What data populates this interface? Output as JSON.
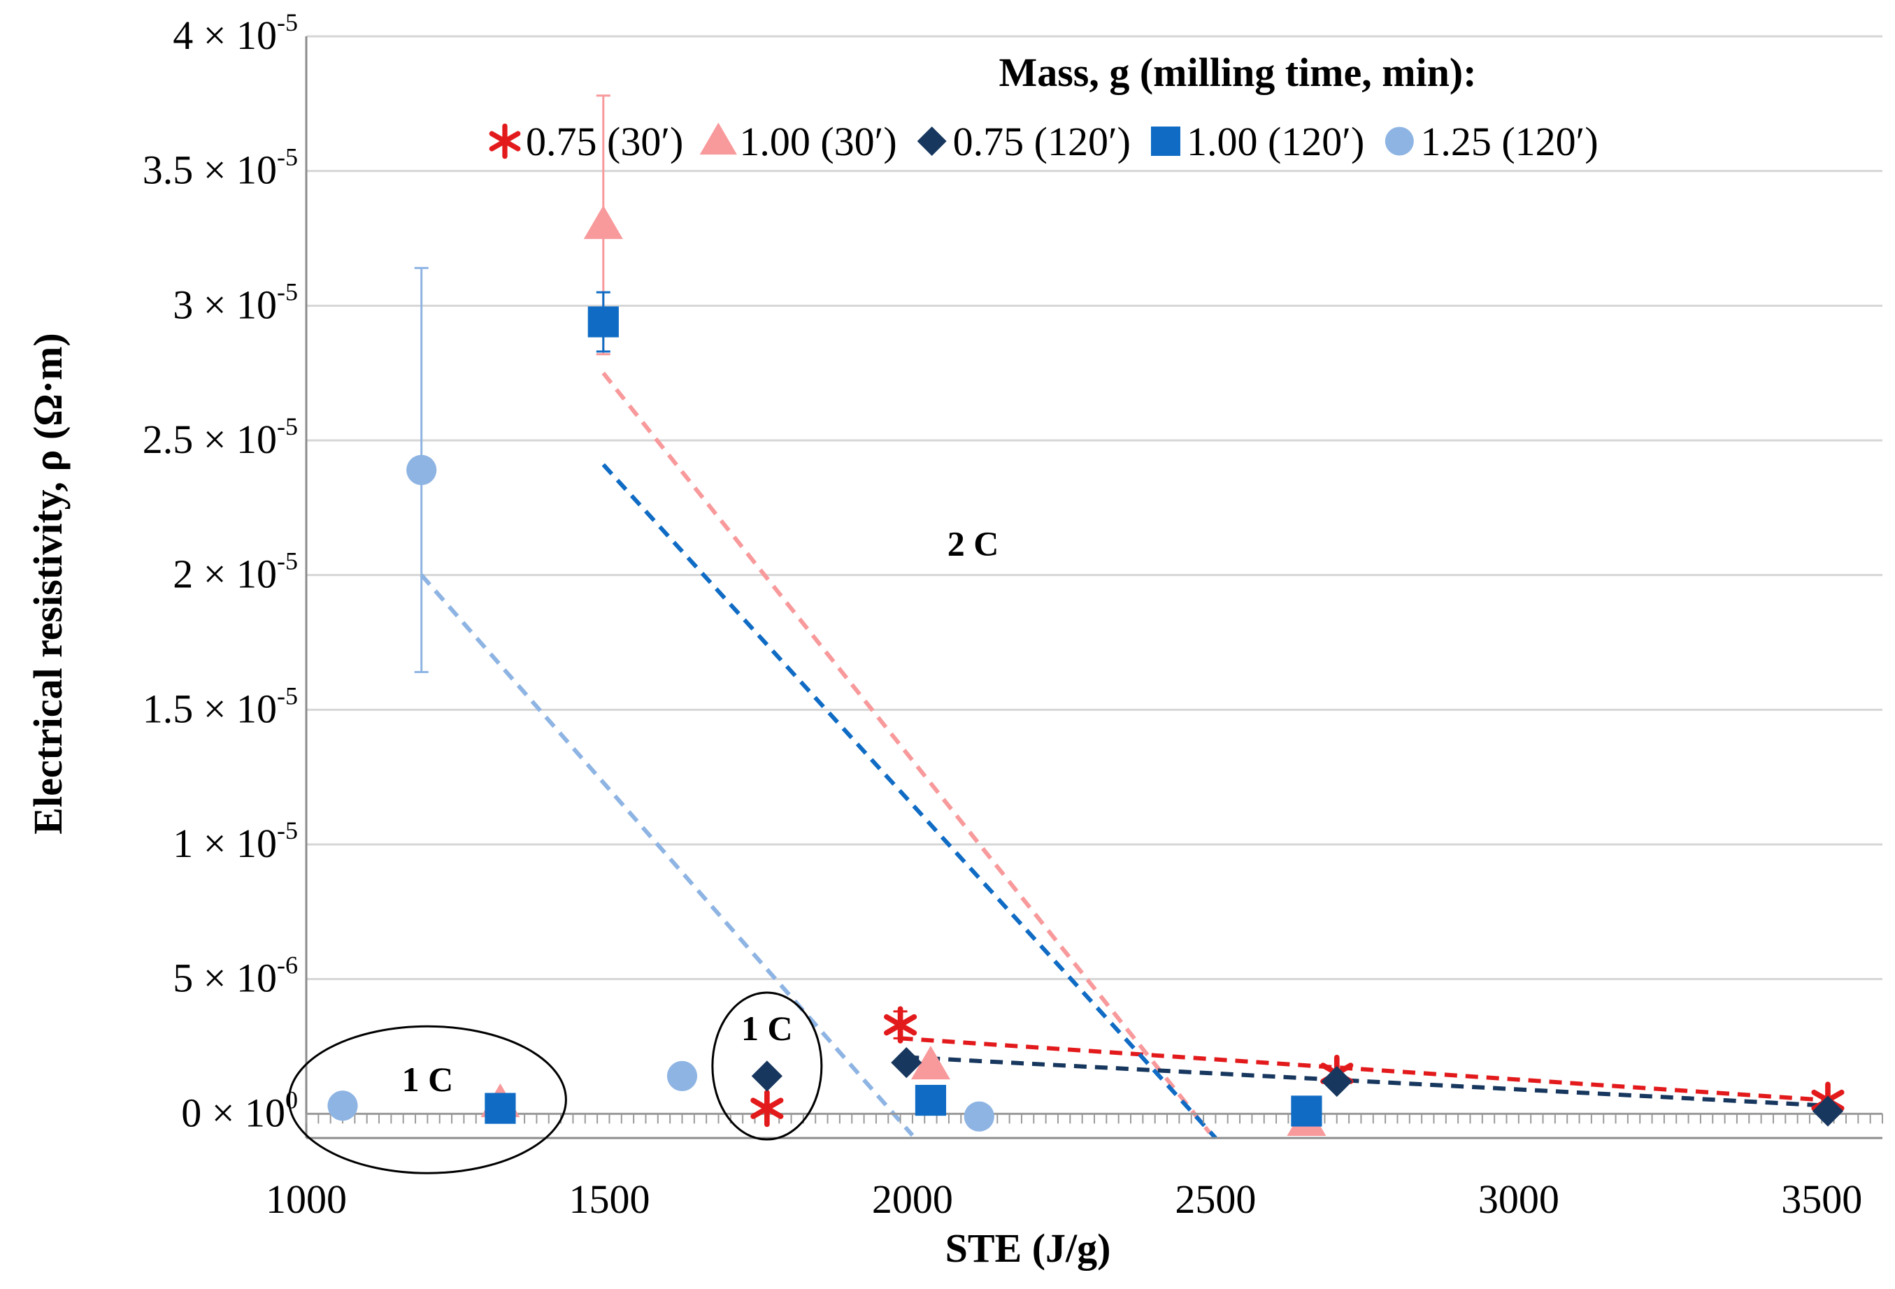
{
  "chart_data": {
    "type": "scatter",
    "title": "",
    "xlabel": "STE (J/g)",
    "ylabel": "Electrical resistivity, ρ (Ω·m)",
    "xlim": [
      1000,
      3600
    ],
    "ylim": [
      -9e-07,
      4e-05
    ],
    "grid": true,
    "x_ticks": [
      1000,
      1500,
      2000,
      2500,
      3000,
      3500
    ],
    "x_tick_labels": [
      "1000",
      "1500",
      "2000",
      "2500",
      "3000",
      "3500"
    ],
    "y_ticks": [
      {
        "value": 0.0,
        "mant": "0 × 10",
        "exp": "0"
      },
      {
        "value": 5e-06,
        "mant": "5 × 10",
        "exp": "-6"
      },
      {
        "value": 1e-05,
        "mant": "1 × 10",
        "exp": "-5"
      },
      {
        "value": 1.5e-05,
        "mant": "1.5 × 10",
        "exp": "-5"
      },
      {
        "value": 2e-05,
        "mant": "2 × 10",
        "exp": "-5"
      },
      {
        "value": 2.5e-05,
        "mant": "2.5 × 10",
        "exp": "-5"
      },
      {
        "value": 3e-05,
        "mant": "3 × 10",
        "exp": "-5"
      },
      {
        "value": 3.5e-05,
        "mant": "3.5 × 10",
        "exp": "-5"
      },
      {
        "value": 4e-05,
        "mant": "4 × 10",
        "exp": "-5"
      }
    ],
    "legend_title": "Mass, g (milling time, min):",
    "legend_position": "top-right",
    "series": [
      {
        "name": "0.75 (30′)",
        "label_main": "0.75 (30",
        "label_tail": ")",
        "marker": "asterisk",
        "color": "#e31a1c",
        "points": [
          {
            "x": 1760,
            "y": 2e-07
          },
          {
            "x": 1980,
            "y": 3.3e-06,
            "err": 5e-07
          },
          {
            "x": 2700,
            "y": 1.5e-06
          },
          {
            "x": 3510,
            "y": 5e-07
          }
        ],
        "trend": [
          [
            1980,
            2.8e-06
          ],
          [
            3510,
            5e-07
          ]
        ]
      },
      {
        "name": "1.00 (30′)",
        "label_main": "1.00 (30",
        "label_tail": ")",
        "marker": "triangle",
        "color": "#f8999b",
        "points": [
          {
            "x": 1320,
            "y": 4e-07
          },
          {
            "x": 1490,
            "y": 3.3e-05,
            "err": 4.8e-06
          },
          {
            "x": 2030,
            "y": 1.8e-06
          },
          {
            "x": 2650,
            "y": -3e-07
          }
        ],
        "trend": [
          [
            1490,
            2.75e-05
          ],
          [
            2490,
            -7e-07
          ]
        ]
      },
      {
        "name": "0.75 (120′)",
        "label_main": "0.75 (120",
        "label_tail": ")",
        "marker": "diamond",
        "color": "#17375e",
        "points": [
          {
            "x": 1760,
            "y": 1.4e-06
          },
          {
            "x": 1990,
            "y": 1.9e-06
          },
          {
            "x": 2700,
            "y": 1.2e-06
          },
          {
            "x": 3510,
            "y": 1e-07
          }
        ],
        "trend": [
          [
            1990,
            2.1e-06
          ],
          [
            3510,
            3e-07
          ]
        ]
      },
      {
        "name": "1.00 (120′)",
        "label_main": "1.00 (120",
        "label_tail": ")",
        "marker": "square",
        "color": "#0f6bc4",
        "points": [
          {
            "x": 1320,
            "y": 2e-07
          },
          {
            "x": 1490,
            "y": 2.94e-05,
            "err": 1.1e-06
          },
          {
            "x": 2030,
            "y": 5e-07
          },
          {
            "x": 2650,
            "y": 1e-07
          }
        ],
        "trend": [
          [
            1490,
            2.41e-05
          ],
          [
            2500,
            -9e-07
          ]
        ]
      },
      {
        "name": "1.25 (120′)",
        "label_main": "1.25 (120",
        "label_tail": ")",
        "marker": "circle",
        "color": "#8eb4e3",
        "points": [
          {
            "x": 1060,
            "y": 3e-07
          },
          {
            "x": 1190,
            "y": 2.39e-05,
            "err": 7.5e-06
          },
          {
            "x": 1620,
            "y": 1.4e-06
          },
          {
            "x": 2110,
            "y": -1e-07
          }
        ],
        "trend": [
          [
            1190,
            2e-05
          ],
          [
            2000,
            -8e-07
          ]
        ]
      }
    ],
    "annotations": [
      {
        "text": "1 C",
        "x": 1200,
        "y": 1.3e-06,
        "ellipse": true
      },
      {
        "text": "1 C",
        "x": 1760,
        "y": 3.2e-06,
        "ellipse": true
      },
      {
        "text": "2 C",
        "x": 2100,
        "y": 2.12e-05,
        "ellipse": false
      }
    ]
  }
}
